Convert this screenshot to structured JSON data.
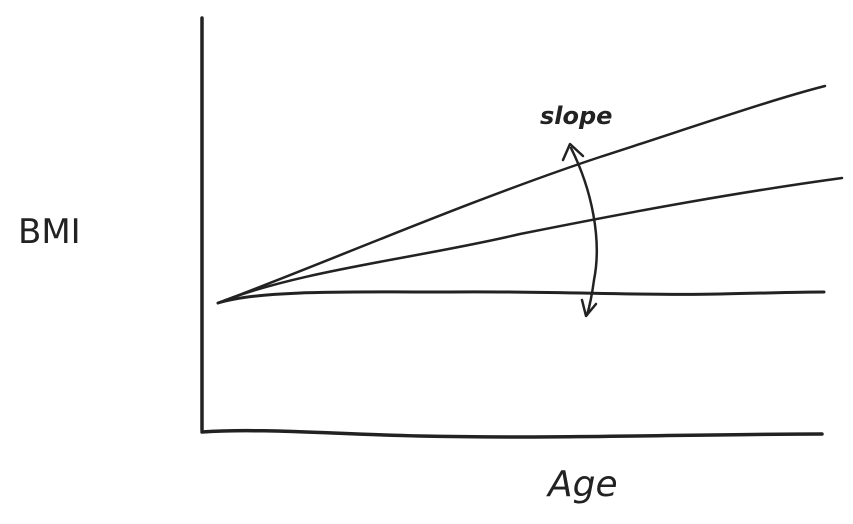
{
  "labels": {
    "y_axis": "BMI",
    "x_axis": "Age",
    "annotation": "slope"
  },
  "lines": [
    {
      "id": "steep",
      "relative_slope": "high"
    },
    {
      "id": "moderate",
      "relative_slope": "medium"
    },
    {
      "id": "flat",
      "relative_slope": "none"
    }
  ],
  "colors": {
    "ink": "#222222",
    "background": "#ffffff"
  }
}
